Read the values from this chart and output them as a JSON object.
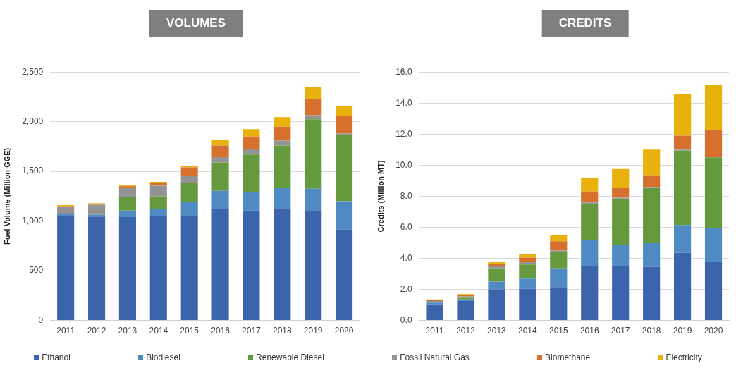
{
  "chart_data": [
    {
      "type": "bar",
      "title": "VOLUMES",
      "ylabel": "Fuel Volume (Million GGE)",
      "stacked": true,
      "grid": "y",
      "legend": "bottom",
      "categories": [
        "2011",
        "2012",
        "2013",
        "2014",
        "2015",
        "2016",
        "2017",
        "2018",
        "2019",
        "2020"
      ],
      "ylim": [
        0,
        2500
      ],
      "yticks": [
        0,
        500,
        {
          "value": 1000,
          "label": "1,000"
        },
        {
          "value": 1500,
          "label": "1,500"
        },
        {
          "value": 2000,
          "label": "2,000"
        },
        {
          "value": 2500,
          "label": "2,500"
        }
      ],
      "series": [
        {
          "name": "Ethanol",
          "color": "#3c64ad",
          "values": [
            1055,
            1045,
            1040,
            1050,
            1055,
            1125,
            1105,
            1130,
            1100,
            915
          ]
        },
        {
          "name": "Biodiesel",
          "color": "#508ac2",
          "values": [
            15,
            20,
            65,
            70,
            140,
            180,
            185,
            200,
            225,
            285
          ]
        },
        {
          "name": "Renewable Diesel",
          "color": "#64993d",
          "values": [
            5,
            10,
            140,
            130,
            185,
            285,
            380,
            430,
            700,
            670
          ]
        },
        {
          "name": "Fossil Natural Gas",
          "color": "#939393",
          "values": [
            70,
            90,
            90,
            105,
            75,
            55,
            55,
            50,
            40,
            10
          ]
        },
        {
          "name": "Biomethane",
          "color": "#d7702c",
          "values": [
            5,
            10,
            15,
            30,
            85,
            115,
            125,
            140,
            160,
            175
          ]
        },
        {
          "name": "Electricity",
          "color": "#e8b10c",
          "values": [
            10,
            5,
            10,
            10,
            10,
            60,
            75,
            95,
            120,
            105
          ]
        }
      ]
    },
    {
      "type": "bar",
      "title": "CREDITS",
      "ylabel": "Credits (Million MT)",
      "stacked": true,
      "grid": "y",
      "categories": [
        "2011",
        "2012",
        "2013",
        "2014",
        "2015",
        "2016",
        "2017",
        "2018",
        "2019",
        "2020"
      ],
      "ylim": [
        0,
        16
      ],
      "yticks": [
        {
          "value": 0,
          "label": "0.0"
        },
        {
          "value": 2,
          "label": "2.0"
        },
        {
          "value": 4,
          "label": "4.0"
        },
        {
          "value": 6,
          "label": "6.0"
        },
        {
          "value": 8,
          "label": "8.0"
        },
        {
          "value": 10,
          "label": "10.0"
        },
        {
          "value": 12,
          "label": "12.0"
        },
        {
          "value": 14,
          "label": "14.0"
        },
        {
          "value": 16,
          "label": "16.0"
        }
      ],
      "series": [
        {
          "color": "#3c64ad",
          "values": [
            1.05,
            1.25,
            2.0,
            2.05,
            2.15,
            3.5,
            3.5,
            3.45,
            4.35,
            3.75
          ]
        },
        {
          "color": "#508ac2",
          "values": [
            0.1,
            0.1,
            0.5,
            0.65,
            1.2,
            1.7,
            1.35,
            1.55,
            1.8,
            2.2
          ]
        },
        {
          "color": "#64993d",
          "values": [
            0.05,
            0.15,
            0.85,
            0.9,
            1.05,
            2.3,
            3.0,
            3.55,
            4.8,
            4.55
          ]
        },
        {
          "color": "#939393",
          "values": [
            0.05,
            0.05,
            0.15,
            0.15,
            0.1,
            0.1,
            0.05,
            0.05,
            0.05,
            0.05
          ]
        },
        {
          "color": "#d7702c",
          "values": [
            0.05,
            0.1,
            0.15,
            0.3,
            0.6,
            0.7,
            0.65,
            0.75,
            0.9,
            1.7
          ]
        },
        {
          "color": "#e8b10c",
          "values": [
            0.05,
            0.05,
            0.1,
            0.2,
            0.4,
            0.9,
            1.2,
            1.65,
            2.7,
            2.9
          ]
        }
      ]
    }
  ]
}
